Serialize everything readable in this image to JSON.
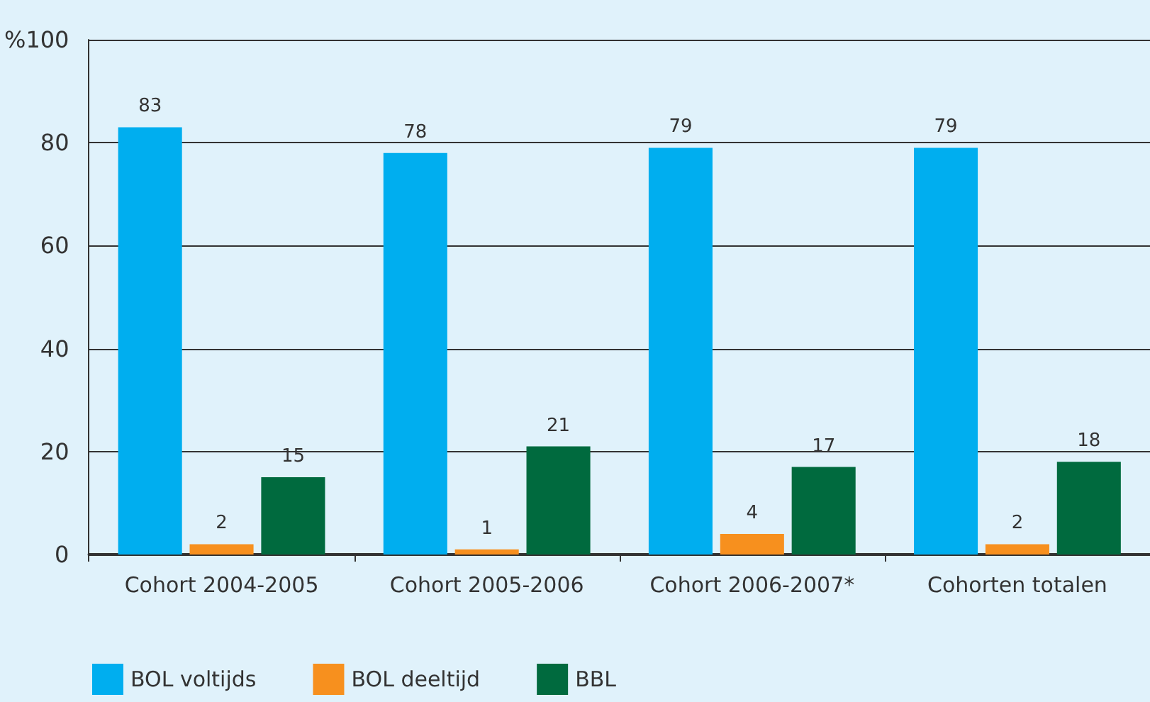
{
  "chart_data": {
    "type": "bar",
    "categories": [
      "Cohort 2004-2005",
      "Cohort 2005-2006",
      "Cohort 2006-2007*",
      "Cohorten totalen"
    ],
    "series": [
      {
        "name": "BOL voltijds",
        "color": "#00aeef",
        "values": [
          83,
          78,
          79,
          79
        ]
      },
      {
        "name": "BOL deeltijd",
        "color": "#f7901e",
        "values": [
          2,
          1,
          4,
          2
        ]
      },
      {
        "name": "BBL",
        "color": "#006a3e",
        "values": [
          15,
          21,
          17,
          18
        ]
      }
    ],
    "ylim": [
      0,
      100
    ],
    "yticks": [
      0,
      20,
      40,
      60,
      80,
      {
        "value": 100,
        "label": "%100"
      }
    ],
    "grid": "y",
    "legend": "bottom left",
    "data_labels": true
  }
}
